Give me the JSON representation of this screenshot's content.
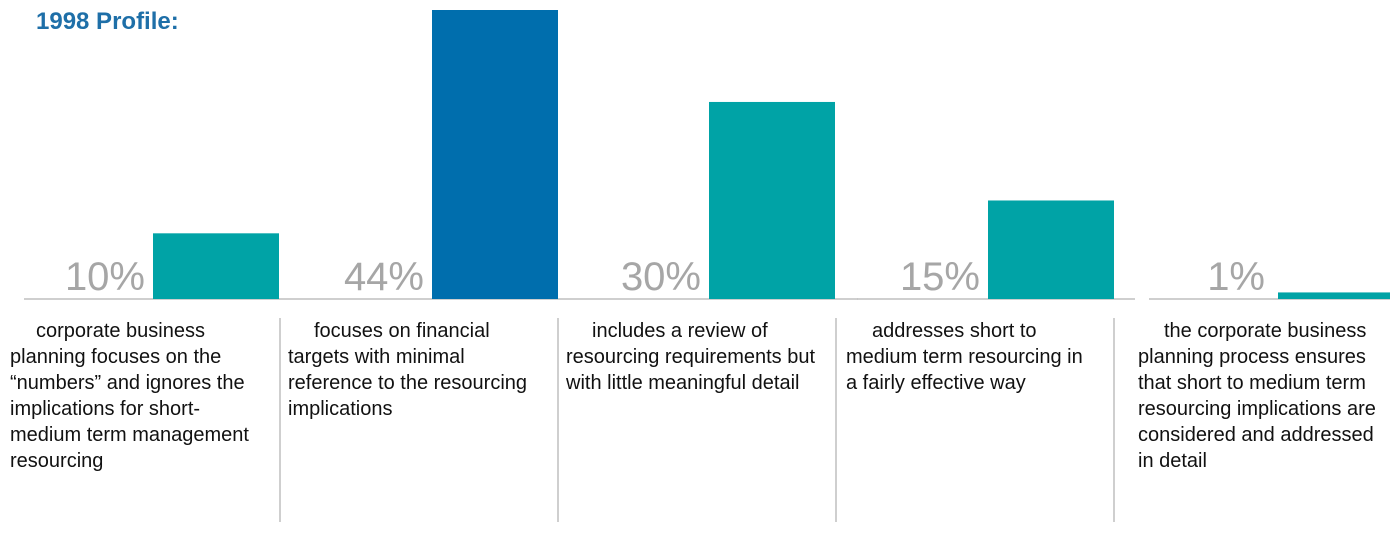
{
  "title": "1998 Profile:",
  "colors": {
    "title": "#1E6FA8",
    "bar": "#00A3A6",
    "bar_highlight": "#006EAD",
    "pct": "#A6A6A6",
    "rule": "#BFBFBF"
  },
  "chart_data": {
    "type": "bar",
    "title": "1998 Profile:",
    "categories": [
      "corporate business planning focuses on the “numbers” and ignores the implications for short-medium term management resourcing",
      "focuses on financial targets with minimal reference to the resourcing implications",
      "includes a review of resourcing requirements but with little meaningful detail",
      "addresses short to medium term resourcing in a fairly effective way",
      "the corporate business planning process ensures that short to medium term resourcing implications are considered and addressed in detail"
    ],
    "values": [
      10,
      44,
      30,
      15,
      1
    ],
    "labels": [
      "10%",
      "44%",
      "30%",
      "15%",
      "1%"
    ],
    "highlight_index": 1,
    "ylim": [
      0,
      44
    ]
  }
}
